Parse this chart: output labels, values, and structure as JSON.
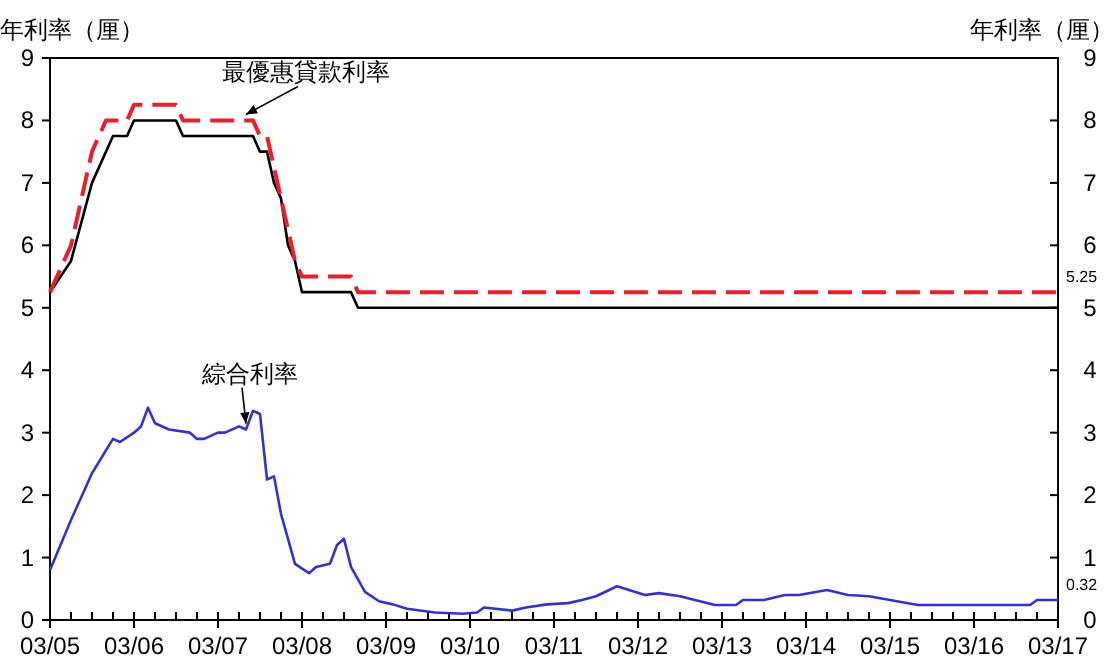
{
  "chart_data": {
    "type": "line",
    "ylabel": "年利率（厘）",
    "y2label": "年利率（厘）",
    "xlim": [
      "2005-03",
      "2017-03"
    ],
    "ylim": [
      0,
      9
    ],
    "yticks": [
      0,
      1,
      2,
      3,
      4,
      5,
      6,
      7,
      8,
      9
    ],
    "y2lim": [
      0,
      9
    ],
    "y2ticks": [
      0,
      1,
      2,
      3,
      4,
      5,
      6,
      7,
      8,
      9
    ],
    "xticks": [
      {
        "value": "2005-03",
        "label": "03/05"
      },
      {
        "value": "2005-06",
        "label": null
      },
      {
        "value": "2005-09",
        "label": null
      },
      {
        "value": "2005-12",
        "label": null
      },
      {
        "value": "2006-03",
        "label": "03/06"
      },
      {
        "value": "2006-06",
        "label": null
      },
      {
        "value": "2006-09",
        "label": null
      },
      {
        "value": "2006-12",
        "label": null
      },
      {
        "value": "2007-03",
        "label": "03/07"
      },
      {
        "value": "2007-06",
        "label": null
      },
      {
        "value": "2007-09",
        "label": null
      },
      {
        "value": "2007-12",
        "label": null
      },
      {
        "value": "2008-03",
        "label": "03/08"
      },
      {
        "value": "2008-06",
        "label": null
      },
      {
        "value": "2008-09",
        "label": null
      },
      {
        "value": "2008-12",
        "label": null
      },
      {
        "value": "2009-03",
        "label": "03/09"
      },
      {
        "value": "2009-06",
        "label": null
      },
      {
        "value": "2009-09",
        "label": null
      },
      {
        "value": "2009-12",
        "label": null
      },
      {
        "value": "2010-03",
        "label": "03/10"
      },
      {
        "value": "2010-06",
        "label": null
      },
      {
        "value": "2010-09",
        "label": null
      },
      {
        "value": "2010-12",
        "label": null
      },
      {
        "value": "2011-03",
        "label": "03/11"
      },
      {
        "value": "2011-06",
        "label": null
      },
      {
        "value": "2011-09",
        "label": null
      },
      {
        "value": "2011-12",
        "label": null
      },
      {
        "value": "2012-03",
        "label": "03/12"
      },
      {
        "value": "2012-06",
        "label": null
      },
      {
        "value": "2012-09",
        "label": null
      },
      {
        "value": "2012-12",
        "label": null
      },
      {
        "value": "2013-03",
        "label": "03/13"
      },
      {
        "value": "2013-06",
        "label": null
      },
      {
        "value": "2013-09",
        "label": null
      },
      {
        "value": "2013-12",
        "label": null
      },
      {
        "value": "2014-03",
        "label": "03/14"
      },
      {
        "value": "2014-06",
        "label": null
      },
      {
        "value": "2014-09",
        "label": null
      },
      {
        "value": "2014-12",
        "label": null
      },
      {
        "value": "2015-03",
        "label": "03/15"
      },
      {
        "value": "2015-06",
        "label": null
      },
      {
        "value": "2015-09",
        "label": null
      },
      {
        "value": "2015-12",
        "label": null
      },
      {
        "value": "2016-03",
        "label": "03/16"
      },
      {
        "value": "2016-06",
        "label": null
      },
      {
        "value": "2016-09",
        "label": null
      },
      {
        "value": "2016-12",
        "label": null
      },
      {
        "value": "2017-03",
        "label": "03/17"
      }
    ],
    "grid": false,
    "marker": "none",
    "series": [
      {
        "color": "#000000",
        "line_style": "solid",
        "x": [
          "2005-03",
          "2005-06",
          "2005-09",
          "2005-12",
          "2006-02",
          "2006-03",
          "2006-09",
          "2006-10",
          "2007-08",
          "2007-09",
          "2007-10",
          "2007-11",
          "2007-12",
          "2008-01",
          "2008-02",
          "2008-03",
          "2008-10",
          "2008-11",
          "2017-03"
        ],
        "values": [
          5.25,
          5.75,
          7.0,
          7.75,
          7.75,
          8.0,
          8.0,
          7.75,
          7.75,
          7.5,
          7.5,
          7.0,
          6.75,
          6.0,
          5.75,
          5.25,
          5.25,
          5.0,
          5.0
        ]
      },
      {
        "color": "#e8202a",
        "line_style": "dashed",
        "x": [
          "2005-03",
          "2005-06",
          "2005-09",
          "2005-11",
          "2006-02",
          "2006-03",
          "2006-09",
          "2006-10",
          "2007-08",
          "2007-09",
          "2007-10",
          "2007-11",
          "2007-12",
          "2008-01",
          "2008-02",
          "2008-03",
          "2008-10",
          "2008-11",
          "2017-03"
        ],
        "values": [
          5.25,
          6.0,
          7.5,
          8.0,
          8.0,
          8.25,
          8.25,
          8.0,
          8.0,
          7.75,
          7.75,
          7.25,
          6.75,
          6.25,
          5.75,
          5.5,
          5.5,
          5.25,
          5.25
        ],
        "value_labels": [
          null,
          null,
          null,
          null,
          null,
          null,
          null,
          null,
          null,
          null,
          null,
          null,
          null,
          null,
          null,
          null,
          null,
          null,
          "5.25"
        ]
      },
      {
        "color": "#3333cc",
        "line_style": "solid",
        "x": [
          "2005-03",
          "2005-06",
          "2005-09",
          "2005-12",
          "2006-01",
          "2006-03",
          "2006-04",
          "2006-05",
          "2006-06",
          "2006-08",
          "2006-11",
          "2006-12",
          "2007-01",
          "2007-03",
          "2007-04",
          "2007-06",
          "2007-07",
          "2007-08",
          "2007-09",
          "2007-10",
          "2007-11",
          "2007-12",
          "2008-02",
          "2008-04",
          "2008-05",
          "2008-07",
          "2008-08",
          "2008-09",
          "2008-10",
          "2008-12",
          "2009-02",
          "2009-04",
          "2009-06",
          "2009-10",
          "2010-02",
          "2010-04",
          "2010-05",
          "2010-09",
          "2010-11",
          "2011-02",
          "2011-05",
          "2011-07",
          "2011-09",
          "2011-12",
          "2012-04",
          "2012-06",
          "2012-09",
          "2013-02",
          "2013-05",
          "2013-06",
          "2013-09",
          "2013-12",
          "2014-02",
          "2014-06",
          "2014-09",
          "2014-12",
          "2015-04",
          "2015-07",
          "2016-03",
          "2016-11",
          "2016-12",
          "2017-03"
        ],
        "values": [
          0.8,
          1.6,
          2.35,
          2.9,
          2.85,
          3.0,
          3.1,
          3.4,
          3.15,
          3.05,
          3.0,
          2.9,
          2.9,
          3.0,
          3.0,
          3.1,
          3.05,
          3.35,
          3.3,
          2.25,
          2.3,
          1.7,
          0.9,
          0.75,
          0.85,
          0.9,
          1.2,
          1.3,
          0.85,
          0.45,
          0.3,
          0.25,
          0.18,
          0.12,
          0.1,
          0.12,
          0.2,
          0.15,
          0.2,
          0.25,
          0.27,
          0.32,
          0.38,
          0.54,
          0.4,
          0.43,
          0.38,
          0.24,
          0.24,
          0.32,
          0.32,
          0.4,
          0.4,
          0.48,
          0.4,
          0.38,
          0.3,
          0.24,
          0.24,
          0.24,
          0.32,
          0.32
        ],
        "value_labels": [
          null,
          null,
          null,
          null,
          null,
          null,
          null,
          null,
          null,
          null,
          null,
          null,
          null,
          null,
          null,
          null,
          null,
          null,
          null,
          null,
          null,
          null,
          null,
          null,
          null,
          null,
          null,
          null,
          null,
          null,
          null,
          null,
          null,
          null,
          null,
          null,
          null,
          null,
          null,
          null,
          null,
          null,
          null,
          null,
          null,
          null,
          null,
          null,
          null,
          null,
          null,
          null,
          null,
          null,
          null,
          null,
          null,
          null,
          null,
          null,
          null,
          "0.32"
        ]
      }
    ],
    "annotations": [
      {
        "text": "最優惠貸款利率",
        "x": "2007-07",
        "y": 8.0
      },
      {
        "text": "綜合利率",
        "x": "2007-07",
        "y": 3.05
      }
    ]
  }
}
